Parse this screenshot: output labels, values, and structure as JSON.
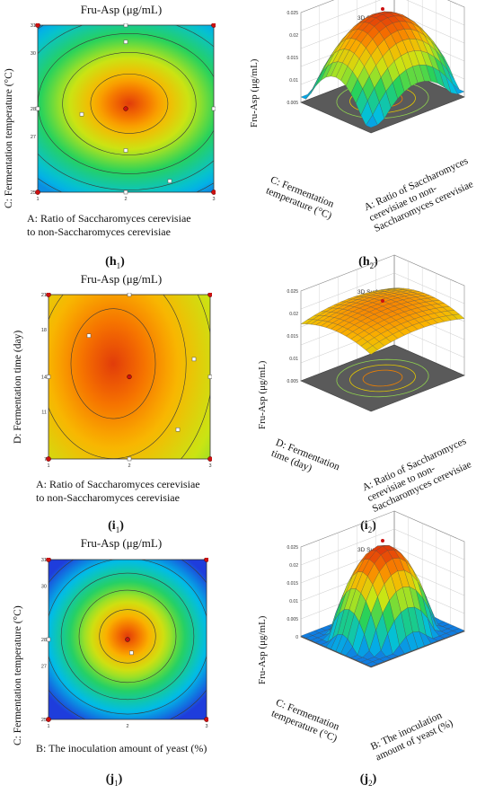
{
  "chart_data": [
    {
      "id": "h1",
      "type": "contour",
      "title": "Fru-Asp (μg/mL)",
      "xlabel_line1": "A: Ratio of Saccharomyces cerevisiae",
      "xlabel_line2": "to non-Saccharomyces cerevisiae",
      "ylabel": "C: Fermentation temperature (°C)",
      "xlim": [
        1,
        3
      ],
      "ylim": [
        25,
        31
      ],
      "xticks": [
        "1",
        "2",
        "3"
      ],
      "yticks": [
        "25",
        "27",
        "28",
        "30",
        "31"
      ],
      "optimum": {
        "x": 2.0,
        "y": 28.0
      },
      "design_points": [
        [
          2,
          31
        ],
        [
          2,
          25
        ],
        [
          3,
          28
        ],
        [
          1,
          28
        ],
        [
          1.5,
          27.8
        ],
        [
          2.0,
          30.4
        ],
        [
          2.0,
          26.5
        ],
        [
          2.5,
          25.4
        ],
        [
          1.0,
          31
        ],
        [
          3,
          31
        ],
        [
          1,
          25
        ],
        [
          3,
          25
        ]
      ],
      "panel_label": "h",
      "panel_sub": "1"
    },
    {
      "id": "h2",
      "type": "surface3d",
      "title": "3D Surface",
      "zlabel": "Fru-Asp (μg/mL)",
      "xlabel_lines": [
        "A: Ratio of Saccharomyces",
        "cerevisiae to non-",
        "Saccharomyces cerevisiae"
      ],
      "ylabel_lines": [
        "C: Fermentation",
        "temperature (°C)"
      ],
      "zticks": [
        "0.005",
        "0.01",
        "0.015",
        "0.02",
        "0.025"
      ],
      "panel_label": "h",
      "panel_sub": "2"
    },
    {
      "id": "i1",
      "type": "contour",
      "title": "Fru-Asp (μg/mL)",
      "xlabel_line1": "A: Ratio of Saccharomyces cerevisiae",
      "xlabel_line2": "to non-Saccharomyces cerevisiae",
      "ylabel": "D: Fermentation time (day)",
      "xlim": [
        1,
        3
      ],
      "ylim": [
        7,
        21
      ],
      "xticks": [
        "1",
        "2",
        "3"
      ],
      "yticks": [
        "7",
        "11",
        "14",
        "18",
        "21"
      ],
      "optimum": {
        "x": 2.0,
        "y": 14.0
      },
      "design_points": [
        [
          2,
          21
        ],
        [
          2,
          7
        ],
        [
          1,
          21
        ],
        [
          3,
          21
        ],
        [
          1,
          7
        ],
        [
          3,
          7
        ],
        [
          1.5,
          17.5
        ],
        [
          3,
          14
        ],
        [
          2.8,
          15.5
        ],
        [
          2.6,
          9.5
        ],
        [
          1,
          14
        ]
      ],
      "panel_label": "i",
      "panel_sub": "1"
    },
    {
      "id": "i2",
      "type": "surface3d",
      "title": "3D Surface",
      "zlabel": "Fru-Asp (μg/mL)",
      "xlabel_lines": [
        "A: Ratio of Saccharomyces",
        "cerevisiae to non-",
        "Saccharomyces cerevisiae"
      ],
      "ylabel_lines": [
        "D: Fermentation",
        "time (day)"
      ],
      "zticks": [
        "0.005",
        "0.01",
        "0.015",
        "0.02",
        "0.025"
      ],
      "panel_label": "i",
      "panel_sub": "2"
    },
    {
      "id": "j1",
      "type": "contour",
      "title": "Fru-Asp (μg/mL)",
      "xlabel_line1": "B: The inoculation amount of yeast (%)",
      "xlabel_line2": "",
      "ylabel": "C: Fermentation temperature (°C)",
      "xlim": [
        1,
        3
      ],
      "ylim": [
        25,
        31
      ],
      "xticks": [
        "1",
        "2",
        "3"
      ],
      "yticks": [
        "25",
        "27",
        "28",
        "30",
        "31"
      ],
      "optimum": {
        "x": 2.0,
        "y": 28.0
      },
      "design_points": [
        [
          1,
          31
        ],
        [
          3,
          31
        ],
        [
          1,
          25
        ],
        [
          3,
          25
        ],
        [
          1,
          28
        ],
        [
          2.05,
          27.5
        ],
        [
          2,
          28
        ]
      ],
      "panel_label": "j",
      "panel_sub": "1"
    },
    {
      "id": "j2",
      "type": "surface3d",
      "title": "3D Surface",
      "zlabel": "Fru-Asp (μg/mL)",
      "xlabel_lines": [
        "B: The inoculation",
        "amount of yeast (%)"
      ],
      "ylabel_lines": [
        "C: Fermentation",
        "temperature (°C)"
      ],
      "zticks": [
        "0",
        "0.005",
        "0.01",
        "0.015",
        "0.02",
        "0.025"
      ],
      "panel_label": "j",
      "panel_sub": "2"
    }
  ]
}
